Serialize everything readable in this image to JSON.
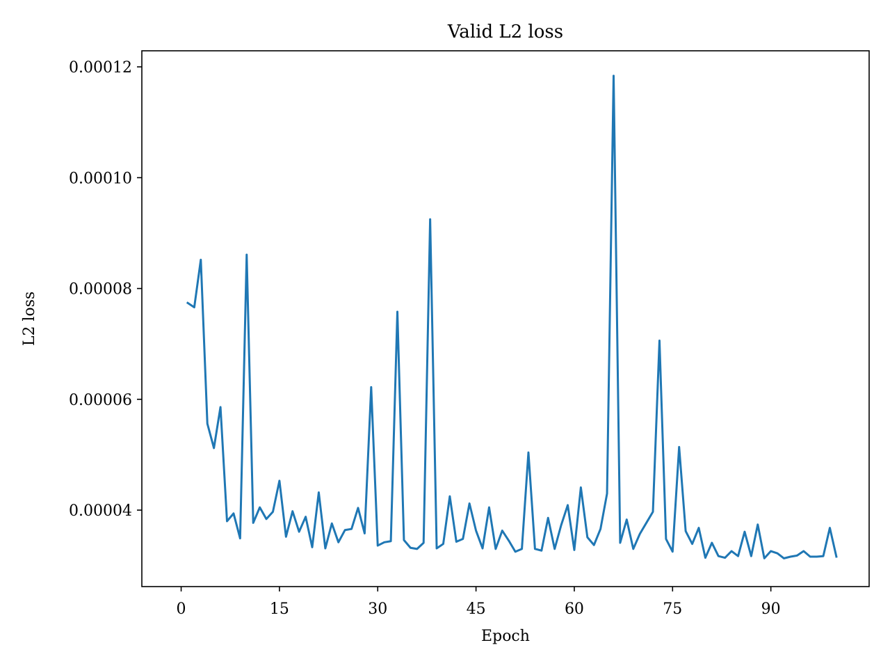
{
  "chart_data": {
    "type": "line",
    "title": "Valid L2 loss",
    "xlabel": "Epoch",
    "ylabel": "L2 loss",
    "xlim": [
      -6,
      105
    ],
    "ylim": [
      2.62e-05,
      0.0001229
    ],
    "xticks": [
      0,
      15,
      30,
      45,
      60,
      75,
      90
    ],
    "xtick_labels": [
      "0",
      "15",
      "30",
      "45",
      "60",
      "75",
      "90"
    ],
    "yticks": [
      4e-05,
      6e-05,
      8e-05,
      0.0001,
      0.00012
    ],
    "ytick_labels": [
      "0.00004",
      "0.00006",
      "0.00008",
      "0.00010",
      "0.00012"
    ],
    "grid": false,
    "legend": "none",
    "series": [
      {
        "color": "#1f77b4",
        "x": [
          1,
          2,
          3,
          4,
          5,
          6,
          7,
          8,
          9,
          10,
          11,
          12,
          13,
          14,
          15,
          16,
          17,
          18,
          19,
          20,
          21,
          22,
          23,
          24,
          25,
          26,
          27,
          28,
          29,
          30,
          31,
          32,
          33,
          34,
          35,
          36,
          37,
          38,
          39,
          40,
          41,
          42,
          43,
          44,
          45,
          46,
          47,
          48,
          49,
          50,
          51,
          52,
          53,
          54,
          55,
          56,
          57,
          58,
          59,
          60,
          61,
          62,
          63,
          64,
          65,
          66,
          67,
          68,
          69,
          70,
          71,
          72,
          73,
          74,
          75,
          76,
          77,
          78,
          79,
          80,
          81,
          82,
          83,
          84,
          85,
          86,
          87,
          88,
          89,
          90,
          91,
          92,
          93,
          94,
          95,
          96,
          97,
          98,
          99,
          100
        ],
        "y": [
          7.74e-05,
          7.66e-05,
          8.52e-05,
          5.56e-05,
          5.12e-05,
          5.86e-05,
          3.8e-05,
          3.94e-05,
          3.49e-05,
          8.61e-05,
          3.77e-05,
          4.05e-05,
          3.84e-05,
          3.97e-05,
          4.53e-05,
          3.52e-05,
          3.98e-05,
          3.61e-05,
          3.88e-05,
          3.33e-05,
          4.32e-05,
          3.31e-05,
          3.76e-05,
          3.42e-05,
          3.64e-05,
          3.66e-05,
          4.04e-05,
          3.58e-05,
          6.22e-05,
          3.36e-05,
          3.42e-05,
          3.44e-05,
          7.58e-05,
          3.46e-05,
          3.32e-05,
          3.3e-05,
          3.41e-05,
          9.25e-05,
          3.31e-05,
          3.39e-05,
          4.25e-05,
          3.43e-05,
          3.48e-05,
          4.12e-05,
          3.63e-05,
          3.31e-05,
          4.05e-05,
          3.3e-05,
          3.63e-05,
          3.45e-05,
          3.25e-05,
          3.3e-05,
          5.04e-05,
          3.3e-05,
          3.27e-05,
          3.86e-05,
          3.3e-05,
          3.73e-05,
          4.09e-05,
          3.28e-05,
          4.41e-05,
          3.51e-05,
          3.37e-05,
          3.66e-05,
          4.3e-05,
          0.0001184,
          3.41e-05,
          3.83e-05,
          3.3e-05,
          3.57e-05,
          3.77e-05,
          3.97e-05,
          7.06e-05,
          3.48e-05,
          3.25e-05,
          5.14e-05,
          3.62e-05,
          3.39e-05,
          3.68e-05,
          3.14e-05,
          3.41e-05,
          3.17e-05,
          3.14e-05,
          3.26e-05,
          3.17e-05,
          3.61e-05,
          3.17e-05,
          3.74e-05,
          3.13e-05,
          3.26e-05,
          3.22e-05,
          3.13e-05,
          3.16e-05,
          3.18e-05,
          3.26e-05,
          3.16e-05,
          3.16e-05,
          3.17e-05,
          3.68e-05,
          3.16e-05
        ]
      }
    ]
  }
}
